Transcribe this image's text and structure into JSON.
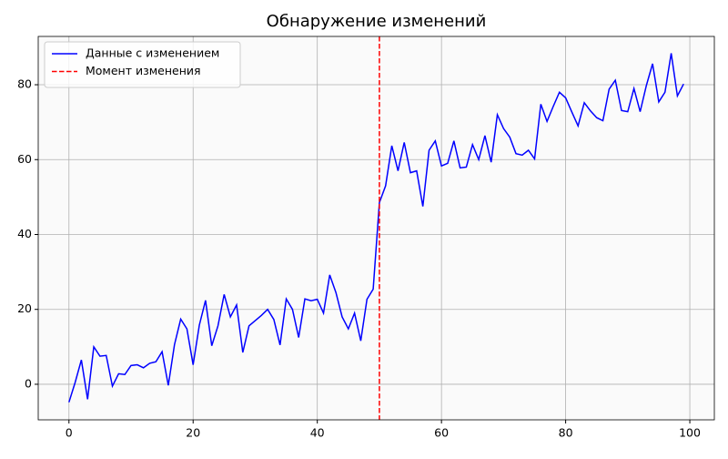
{
  "chart_data": {
    "type": "line",
    "title": "Обнаружение изменений",
    "x": [
      0,
      1,
      2,
      3,
      4,
      5,
      6,
      7,
      8,
      9,
      10,
      11,
      12,
      13,
      14,
      15,
      16,
      17,
      18,
      19,
      20,
      21,
      22,
      23,
      24,
      25,
      26,
      27,
      28,
      29,
      30,
      31,
      32,
      33,
      34,
      35,
      36,
      37,
      38,
      39,
      40,
      41,
      42,
      43,
      44,
      45,
      46,
      47,
      48,
      49,
      50,
      51,
      52,
      53,
      54,
      55,
      56,
      57,
      58,
      59,
      60,
      61,
      62,
      63,
      64,
      65,
      66,
      67,
      68,
      69,
      70,
      71,
      72,
      73,
      74,
      75,
      76,
      77,
      78,
      79,
      80,
      81,
      82,
      83,
      84,
      85,
      86,
      87,
      88,
      89,
      90,
      91,
      92,
      93,
      94,
      95,
      96,
      97,
      98,
      99
    ],
    "series": [
      {
        "name": "Данные с изменением",
        "color": "#0000ff",
        "values": [
          -4.8,
          0.5,
          6.5,
          -4,
          10,
          7.5,
          7.7,
          -0.5,
          2.8,
          2.6,
          5,
          5.2,
          4.4,
          5.6,
          6,
          8.7,
          -0.3,
          10.6,
          17.4,
          14.8,
          5.2,
          15.8,
          22.4,
          10.3,
          15.6,
          24,
          18,
          21.2,
          8.5,
          15.6,
          17,
          18.4,
          20,
          17.3,
          10.5,
          22.8,
          20,
          12.5,
          22.8,
          22.3,
          22.7,
          19,
          29.2,
          24.5,
          18,
          14.8,
          19,
          11.6,
          22.7,
          25.4,
          48.5,
          53,
          63.7,
          57,
          64.6,
          56.5,
          57,
          47.5,
          62.5,
          65,
          58.3,
          59,
          65,
          57.8,
          58,
          64,
          60,
          66.4,
          59.3,
          72,
          68.3,
          66,
          61.6,
          61.2,
          62.5,
          60.2,
          74.8,
          70.2,
          74.2,
          78,
          76.5,
          72.7,
          69,
          75.2,
          73,
          71.2,
          70.4,
          78.8,
          81.2,
          73.1,
          72.8,
          79,
          72.8,
          79.8,
          85.6,
          75.4,
          78,
          88.4,
          77,
          80.2
        ]
      }
    ],
    "change_point": {
      "name": "Момент изменения",
      "color": "#ff0000",
      "x": 50
    },
    "xlim": [
      -4.95,
      103.95
    ],
    "ylim": [
      -9.5,
      92.9
    ],
    "xticks": [
      0,
      20,
      40,
      60,
      80,
      100
    ],
    "yticks": [
      0,
      20,
      40,
      60,
      80
    ],
    "grid": true,
    "legend": "upper left"
  }
}
